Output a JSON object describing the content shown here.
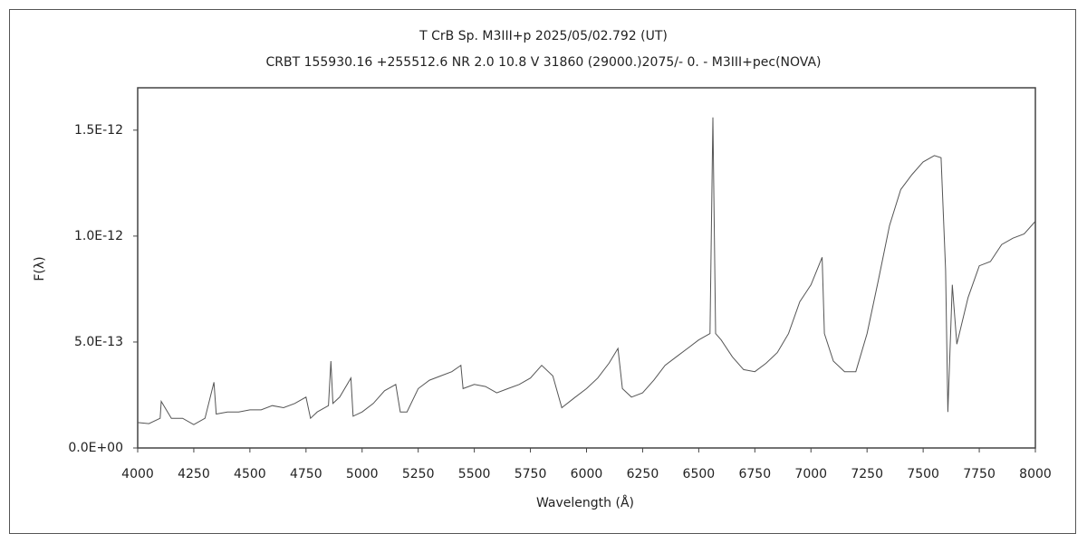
{
  "chart_data": {
    "type": "line",
    "title": "T CrB    Sp. M3III+p    2025/05/02.792 (UT)",
    "subtitle": "CRBT 155930.16 +255512.6 NR 2.0 10.8 V 31860 (29000.)2075/-  0. - M3III+pec(NOVA)",
    "x_label": "Wavelength (Å)",
    "y_label": "F(λ)",
    "xlim": [
      4000,
      8000
    ],
    "xticks": [
      4000,
      4250,
      4500,
      4750,
      5000,
      5250,
      5500,
      5750,
      6000,
      6250,
      6500,
      6750,
      7000,
      7250,
      7500,
      7750,
      8000
    ],
    "ylim": [
      0,
      1.7e-12
    ],
    "yticks": [
      {
        "value": 0,
        "label": "0.0E+00"
      },
      {
        "value": 5e-13,
        "label": "5.0E-13"
      },
      {
        "value": 1e-12,
        "label": "1.0E-12"
      },
      {
        "value": 1.5e-12,
        "label": "1.5E-12"
      }
    ],
    "color": "#555555",
    "x": [
      4000,
      4050,
      4100,
      4105,
      4150,
      4200,
      4250,
      4300,
      4340,
      4350,
      4400,
      4450,
      4500,
      4550,
      4600,
      4650,
      4700,
      4750,
      4770,
      4800,
      4850,
      4861,
      4870,
      4900,
      4950,
      4960,
      5000,
      5050,
      5100,
      5150,
      5170,
      5200,
      5250,
      5300,
      5350,
      5400,
      5440,
      5450,
      5500,
      5550,
      5600,
      5650,
      5700,
      5750,
      5800,
      5850,
      5890,
      5950,
      6000,
      6050,
      6100,
      6140,
      6160,
      6200,
      6250,
      6300,
      6350,
      6400,
      6450,
      6500,
      6550,
      6563,
      6575,
      6600,
      6650,
      6700,
      6750,
      6800,
      6850,
      6900,
      6950,
      7000,
      7050,
      7060,
      7100,
      7150,
      7200,
      7250,
      7300,
      7350,
      7400,
      7450,
      7500,
      7550,
      7580,
      7600,
      7610,
      7630,
      7650,
      7700,
      7750,
      7800,
      7850,
      7900,
      7950,
      8000
    ],
    "values": [
      1.2e-13,
      1.15e-13,
      1.4e-13,
      2.2e-13,
      1.4e-13,
      1.4e-13,
      1.1e-13,
      1.4e-13,
      3.1e-13,
      1.6e-13,
      1.7e-13,
      1.7e-13,
      1.8e-13,
      1.8e-13,
      2e-13,
      1.9e-13,
      2.1e-13,
      2.4e-13,
      1.4e-13,
      1.7e-13,
      2e-13,
      4.1e-13,
      2.1e-13,
      2.4e-13,
      3.3e-13,
      1.5e-13,
      1.7e-13,
      2.1e-13,
      2.7e-13,
      3e-13,
      1.7e-13,
      1.7e-13,
      2.8e-13,
      3.2e-13,
      3.4e-13,
      3.6e-13,
      3.9e-13,
      2.8e-13,
      3e-13,
      2.9e-13,
      2.6e-13,
      2.8e-13,
      3e-13,
      3.3e-13,
      3.9e-13,
      3.4e-13,
      1.9e-13,
      2.4e-13,
      2.8e-13,
      3.3e-13,
      4e-13,
      4.7e-13,
      2.8e-13,
      2.4e-13,
      2.6e-13,
      3.2e-13,
      3.9e-13,
      4.3e-13,
      4.7e-13,
      5.1e-13,
      5.4e-13,
      1.56e-12,
      5.4e-13,
      5.1e-13,
      4.3e-13,
      3.7e-13,
      3.6e-13,
      4e-13,
      4.5e-13,
      5.4e-13,
      6.9e-13,
      7.7e-13,
      9e-13,
      5.4e-13,
      4.1e-13,
      3.6e-13,
      3.6e-13,
      5.4e-13,
      7.9e-13,
      1.05e-12,
      1.22e-12,
      1.29e-12,
      1.35e-12,
      1.38e-12,
      1.37e-12,
      8.4e-13,
      1.7e-13,
      7.7e-13,
      4.9e-13,
      7.1e-13,
      8.6e-13,
      8.8e-13,
      9.6e-13,
      9.9e-13,
      1.01e-12,
      1.07e-12
    ]
  }
}
